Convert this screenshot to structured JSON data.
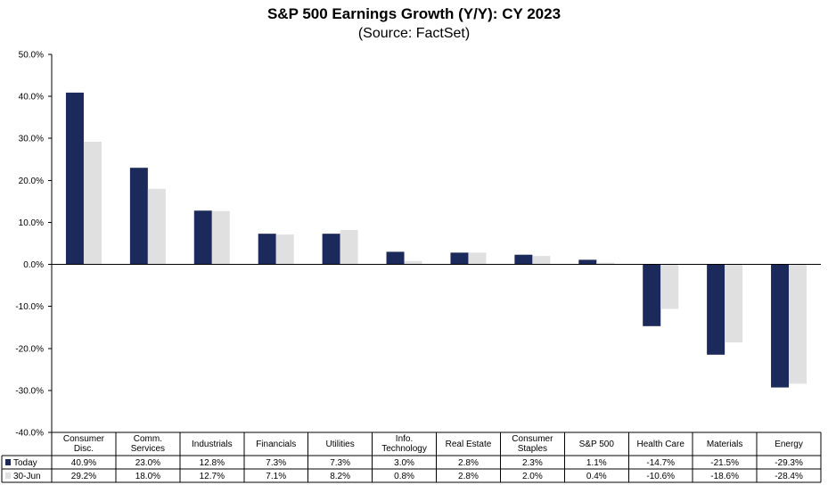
{
  "title": "S&P 500 Earnings Growth (Y/Y): CY 2023",
  "subtitle": "(Source: FactSet)",
  "colors": {
    "today": "#1b2a5a",
    "jun30": "#e0e0e0",
    "grid": "#000000"
  },
  "chart_data": {
    "type": "bar",
    "title": "S&P 500 Earnings Growth (Y/Y): CY 2023",
    "subtitle": "(Source: FactSet)",
    "categories": [
      [
        "Consumer",
        "Disc."
      ],
      [
        "Comm.",
        "Services"
      ],
      [
        "Industrials"
      ],
      [
        "Financials"
      ],
      [
        "Utilities"
      ],
      [
        "Info.",
        "Technology"
      ],
      [
        "Real Estate"
      ],
      [
        "Consumer",
        "Staples"
      ],
      [
        "S&P 500"
      ],
      [
        "Health Care"
      ],
      [
        "Materials"
      ],
      [
        "Energy"
      ]
    ],
    "series": [
      {
        "name": "Today",
        "values": [
          40.9,
          23.0,
          12.8,
          7.3,
          7.3,
          3.0,
          2.8,
          2.3,
          1.1,
          -14.7,
          -21.5,
          -29.3
        ],
        "labels": [
          "40.9%",
          "23.0%",
          "12.8%",
          "7.3%",
          "7.3%",
          "3.0%",
          "2.8%",
          "2.3%",
          "1.1%",
          "-14.7%",
          "-21.5%",
          "-29.3%"
        ]
      },
      {
        "name": "30-Jun",
        "values": [
          29.2,
          18.0,
          12.7,
          7.1,
          8.2,
          0.8,
          2.8,
          2.0,
          0.4,
          -10.6,
          -18.6,
          -28.4
        ],
        "labels": [
          "29.2%",
          "18.0%",
          "12.7%",
          "7.1%",
          "8.2%",
          "0.8%",
          "2.8%",
          "2.0%",
          "0.4%",
          "-10.6%",
          "-18.6%",
          "-28.4%"
        ]
      }
    ],
    "ylim": [
      -40,
      50
    ],
    "ytick_step": 10,
    "ytick_labels": [
      "50.0%",
      "40.0%",
      "30.0%",
      "20.0%",
      "10.0%",
      "0.0%",
      "-10.0%",
      "-20.0%",
      "-30.0%",
      "-40.0%"
    ],
    "legend": "data-table",
    "grid": false
  }
}
